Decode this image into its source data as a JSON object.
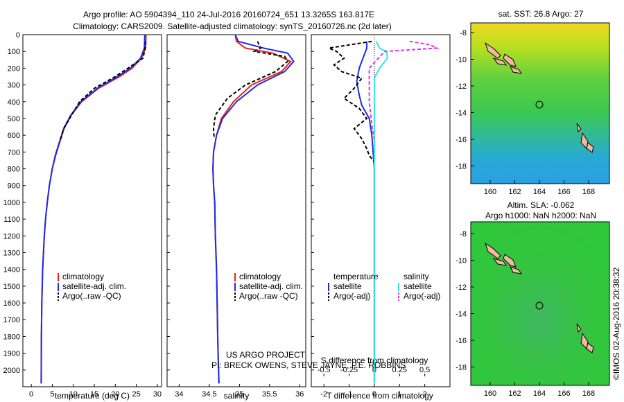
{
  "header": {
    "line1": "Argo profile: AO 5904394_110 24-Jul-2016 20160724_651 13.3265S 163.817E",
    "line2": "Climatology: CARS2009. Satellite-adjusted climatology: synTS_20160726.nc (2d later)"
  },
  "colors": {
    "climatology": "#e8231c",
    "satellite": "#1c2be8",
    "argo": "#000000",
    "salinity_sat": "#33e5e5",
    "salinity_argo": "#e233e2"
  },
  "axes": {
    "depth_ticks": [
      "0",
      "100",
      "200",
      "300",
      "400",
      "500",
      "600",
      "700",
      "800",
      "900",
      "1000",
      "1100",
      "1200",
      "1300",
      "1400",
      "1500",
      "1600",
      "1700",
      "1800",
      "1900",
      "2000"
    ],
    "temperature": {
      "xlabel": "temperature (deg C)",
      "ticks": [
        "0",
        "5",
        "10",
        "15",
        "20",
        "25",
        "30"
      ]
    },
    "salinity": {
      "xlabel": "salinity",
      "ticks": [
        "34",
        "34.5",
        "35",
        "35.5",
        "36"
      ]
    },
    "difference": {
      "xlabel": "T difference from climatology",
      "ticks": [
        "-2",
        "-1",
        "0",
        "1",
        "2"
      ],
      "top_label": "S difference from climatology",
      "top_ticks": [
        "-0.5",
        "-0.25",
        "0",
        "0.25",
        "0.5"
      ]
    }
  },
  "legend_temp": {
    "items": [
      "climatology",
      "satellite-adj. clim.",
      "Argo(..raw -QC)"
    ]
  },
  "legend_sal": {
    "items": [
      "climatology",
      "satellite-adj. clim.",
      "Argo(..raw -QC)"
    ]
  },
  "legend_diff": {
    "temp_title": "temperature",
    "sal_title": "salinity",
    "temp_items": [
      "satellite",
      "Argo(-adj)"
    ],
    "sal_items": [
      "satellite",
      "Argo(-adj)"
    ]
  },
  "project": {
    "line1": "US ARGO PROJECT",
    "line2": "PI: BRECK OWENS, STEVE JAYNE, P.E. ROBBINS"
  },
  "map1": {
    "title": "sat. SST: 26.8 Argo: 27"
  },
  "map2": {
    "title1": "Altim. SLA: -0.062",
    "title2": "Argo h1000: NaN h2000: NaN"
  },
  "map_axes": {
    "lat_ticks": [
      "-8",
      "-10",
      "-12",
      "-14",
      "-16",
      "-18"
    ],
    "lon_ticks": [
      "160",
      "162",
      "164",
      "166",
      "168"
    ]
  },
  "credit": "©IMOS 02-Aug-2016 20:38:32",
  "chart_data": [
    {
      "type": "line",
      "title": "",
      "xlabel": "temperature (deg C)",
      "ylabel": "",
      "xlim": [
        -2,
        31
      ],
      "ylim": [
        2100,
        0
      ],
      "series": [
        {
          "name": "climatology",
          "x": [
            27.3,
            27.2,
            26.2,
            24.0,
            21.0,
            16.0,
            12.0,
            9.5,
            7.8,
            6.8,
            5.8,
            5.0,
            4.3,
            3.8,
            3.4,
            3.1,
            2.9,
            2.7,
            2.6,
            2.5,
            2.4,
            2.35
          ],
          "y": [
            0,
            80,
            140,
            200,
            250,
            320,
            400,
            480,
            560,
            640,
            720,
            800,
            900,
            1000,
            1100,
            1200,
            1300,
            1400,
            1500,
            1600,
            1800,
            2080
          ]
        },
        {
          "name": "satellite-adj. clim.",
          "x": [
            27.0,
            26.9,
            26.0,
            23.6,
            20.5,
            15.7,
            11.8,
            9.4,
            7.7,
            6.7,
            5.7,
            5.0,
            4.3,
            3.8,
            3.4,
            3.1,
            2.9,
            2.7,
            2.6,
            2.5,
            2.4,
            2.35
          ],
          "y": [
            0,
            80,
            140,
            200,
            250,
            320,
            400,
            480,
            560,
            640,
            720,
            800,
            900,
            1000,
            1100,
            1200,
            1300,
            1400,
            1500,
            1600,
            1800,
            2080
          ]
        },
        {
          "name": "Argo(..raw -QC)",
          "x": [
            27.2,
            27.1,
            26.6,
            23.0,
            20.0,
            15.0,
            11.5,
            9.6,
            7.7,
            6.9
          ],
          "y": [
            40,
            80,
            140,
            200,
            250,
            320,
            400,
            480,
            560,
            630
          ]
        }
      ]
    },
    {
      "type": "line",
      "title": "",
      "xlabel": "salinity",
      "ylabel": "",
      "xlim": [
        33.8,
        36.1
      ],
      "ylim": [
        2100,
        0
      ],
      "series": [
        {
          "name": "climatology",
          "x": [
            34.93,
            34.95,
            35.1,
            35.55,
            35.85,
            35.7,
            35.2,
            34.9,
            34.7,
            34.62,
            34.57,
            34.56,
            34.57,
            34.59,
            34.6,
            34.62,
            34.63,
            34.64,
            34.65,
            34.66
          ],
          "y": [
            0,
            40,
            80,
            110,
            160,
            220,
            300,
            400,
            500,
            600,
            700,
            800,
            900,
            1000,
            1200,
            1400,
            1600,
            1800,
            1950,
            2080
          ]
        },
        {
          "name": "satellite-adj. clim.",
          "x": [
            34.93,
            34.98,
            35.4,
            35.8,
            35.9,
            35.75,
            35.3,
            34.95,
            34.72,
            34.62,
            34.57,
            34.56,
            34.57,
            34.59,
            34.6,
            34.62,
            34.63,
            34.64,
            34.65,
            34.66
          ],
          "y": [
            0,
            40,
            80,
            110,
            160,
            220,
            300,
            400,
            500,
            600,
            700,
            800,
            900,
            1000,
            1200,
            1400,
            1600,
            1800,
            1950,
            2080
          ]
        },
        {
          "name": "Argo(..raw -QC)",
          "x": [
            35.3,
            35.35,
            35.25,
            35.75,
            35.8,
            35.6,
            35.1,
            34.8,
            34.6,
            34.57,
            34.58
          ],
          "y": [
            40,
            80,
            100,
            130,
            160,
            220,
            300,
            380,
            480,
            560,
            620
          ]
        }
      ]
    },
    {
      "type": "line",
      "title": "",
      "xlabel": "T difference from climatology",
      "ylabel": "",
      "xlim": [
        -2.5,
        3
      ],
      "ylim": [
        2100,
        0
      ],
      "x2label": "S difference from climatology",
      "x2lim": [
        -0.625,
        0.75
      ],
      "series": [
        {
          "name": "temperature satellite",
          "x": [
            -0.3,
            -0.3,
            -0.4,
            -0.6,
            -0.7,
            -0.6,
            -0.5,
            -0.2,
            -0.1,
            -0.05,
            0,
            0,
            0
          ],
          "y": [
            40,
            80,
            120,
            200,
            280,
            360,
            420,
            500,
            600,
            700,
            800,
            1000,
            2080
          ]
        },
        {
          "name": "temperature Argo(-adj)",
          "x": [
            -0.1,
            -1.8,
            -1.5,
            -1.2,
            -1.6,
            -1.3,
            -0.5,
            -0.8,
            -1.2,
            -0.6,
            -0.3,
            -0.8,
            -0.5,
            -0.3,
            -0.2,
            0
          ],
          "y": [
            40,
            80,
            100,
            140,
            180,
            220,
            260,
            320,
            380,
            440,
            500,
            560,
            620,
            680,
            720,
            760
          ]
        },
        {
          "name": "salinity satellite",
          "x": [
            0.02,
            0.05,
            0.12,
            0.13,
            0.05,
            0,
            0,
            0,
            0
          ],
          "y": [
            40,
            80,
            100,
            140,
            200,
            260,
            400,
            800,
            2080
          ]
        },
        {
          "name": "salinity Argo(-adj)",
          "x": [
            0.35,
            0.55,
            0.62,
            0.1,
            -0.05,
            -0.05,
            -0.02,
            0
          ],
          "y": [
            40,
            60,
            80,
            100,
            200,
            400,
            560,
            620
          ]
        }
      ]
    }
  ]
}
